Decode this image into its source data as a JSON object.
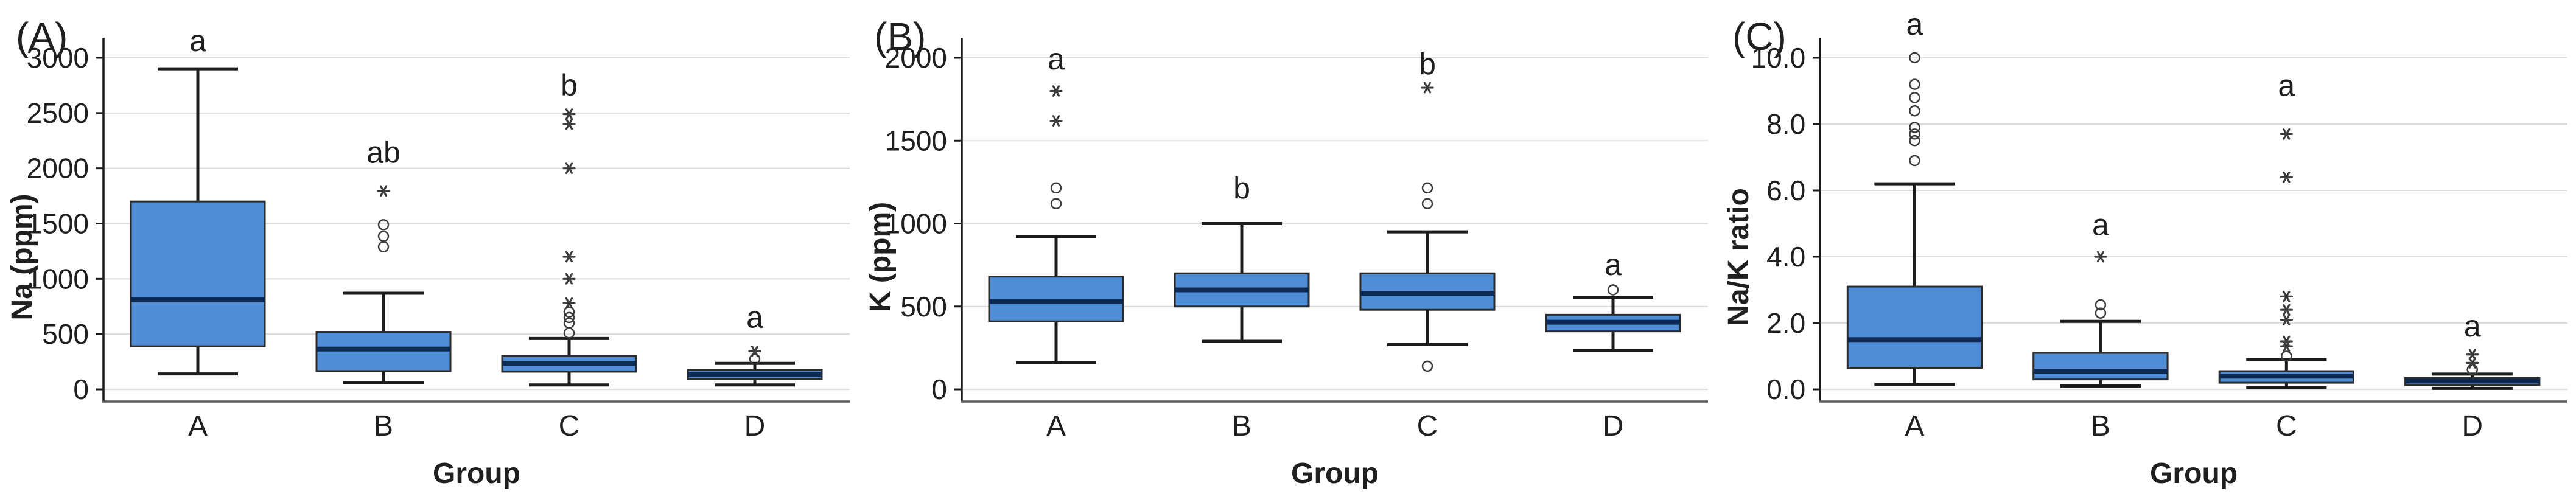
{
  "figure": {
    "background": "#ffffff"
  },
  "styles": {
    "box_fill": "#4f8dd6",
    "box_stroke": "#2b2b2b",
    "median_color": "#0f2a52",
    "whisker_color": "#1c1c1c",
    "grid_color": "#dcdcdc",
    "axis_color": "#1a1a1a",
    "frame_color": "#5a5a5a",
    "text_color": "#1f1f1f",
    "outlier_color": "#3c3c3c"
  },
  "chart_data": [
    {
      "type": "boxplot",
      "panel_label": "(A)",
      "ylabel": "Na (ppm)",
      "xlabel": "Group",
      "grid": true,
      "legend": "none",
      "ylim": [
        0,
        3000
      ],
      "yticks": [
        0,
        500,
        1000,
        1500,
        2000,
        2500,
        3000
      ],
      "ytick_labels": [
        "0",
        "500",
        "1000",
        "1500",
        "2000",
        "2500",
        "3000"
      ],
      "categories": [
        "A",
        "B",
        "C",
        "D"
      ],
      "groups": [
        {
          "name": "A",
          "whislo": 140,
          "q1": 390,
          "med": 810,
          "q3": 1700,
          "whishi": 2900,
          "outliers_circles": [],
          "outliers_stars": [],
          "sig": {
            "label": "a",
            "y": 3060
          }
        },
        {
          "name": "B",
          "whislo": 60,
          "q1": 165,
          "med": 365,
          "q3": 520,
          "whishi": 870,
          "outliers_circles": [
            1290,
            1385,
            1490
          ],
          "outliers_stars": [
            1795
          ],
          "sig": {
            "label": "ab",
            "y": 2050
          }
        },
        {
          "name": "C",
          "whislo": 40,
          "q1": 160,
          "med": 235,
          "q3": 300,
          "whishi": 460,
          "outliers_circles": [
            510,
            600,
            650,
            700
          ],
          "outliers_stars": [
            780,
            1000,
            1200,
            2000,
            2400,
            2490
          ],
          "sig": {
            "label": "b",
            "y": 2660
          }
        },
        {
          "name": "D",
          "whislo": 40,
          "q1": 95,
          "med": 135,
          "q3": 175,
          "whishi": 235,
          "outliers_circles": [
            275
          ],
          "outliers_stars": [
            345
          ],
          "sig": {
            "label": "a",
            "y": 560
          }
        }
      ]
    },
    {
      "type": "boxplot",
      "panel_label": "(B)",
      "ylabel": "K (ppm)",
      "xlabel": "Group",
      "grid": true,
      "legend": "none",
      "ylim": [
        0,
        2000
      ],
      "yticks": [
        0,
        500,
        1000,
        1500,
        2000
      ],
      "ytick_labels": [
        "0",
        "500",
        "1000",
        "1500",
        "2000"
      ],
      "categories": [
        "A",
        "B",
        "C",
        "D"
      ],
      "groups": [
        {
          "name": "A",
          "whislo": 160,
          "q1": 410,
          "med": 530,
          "q3": 680,
          "whishi": 920,
          "outliers_circles": [
            1120,
            1215
          ],
          "outliers_stars": [
            1620,
            1800
          ],
          "sig": {
            "label": "a",
            "y": 1930
          }
        },
        {
          "name": "B",
          "whislo": 290,
          "q1": 500,
          "med": 600,
          "q3": 700,
          "whishi": 1000,
          "outliers_circles": [],
          "outliers_stars": [],
          "sig": {
            "label": "b",
            "y": 1150
          }
        },
        {
          "name": "C",
          "whislo": 270,
          "q1": 480,
          "med": 580,
          "q3": 700,
          "whishi": 950,
          "outliers_circles": [
            140,
            1120,
            1215
          ],
          "outliers_stars": [
            1820
          ],
          "sig": {
            "label": "b",
            "y": 1900
          }
        },
        {
          "name": "D",
          "whislo": 235,
          "q1": 350,
          "med": 405,
          "q3": 450,
          "whishi": 555,
          "outliers_circles": [
            600
          ],
          "outliers_stars": [],
          "sig": {
            "label": "a",
            "y": 690
          }
        }
      ]
    },
    {
      "type": "boxplot",
      "panel_label": "(C)",
      "ylabel": "Na/K ratio",
      "xlabel": "Group",
      "grid": true,
      "legend": "none",
      "ylim": [
        0,
        10
      ],
      "yticks": [
        0,
        2,
        4,
        6,
        8,
        10
      ],
      "ytick_labels": [
        "0.0",
        "2.0",
        "4.0",
        "6.0",
        "8.0",
        "10.0"
      ],
      "categories": [
        "A",
        "B",
        "C",
        "D"
      ],
      "groups": [
        {
          "name": "A",
          "whislo": 0.15,
          "q1": 0.65,
          "med": 1.5,
          "q3": 3.1,
          "whishi": 6.2,
          "outliers_circles": [
            6.9,
            7.5,
            7.7,
            7.9,
            8.4,
            8.8,
            9.2,
            10.0
          ],
          "outliers_stars": [],
          "sig": {
            "label": "a",
            "y": 10.7
          }
        },
        {
          "name": "B",
          "whislo": 0.1,
          "q1": 0.3,
          "med": 0.55,
          "q3": 1.1,
          "whishi": 2.05,
          "outliers_circles": [
            2.3,
            2.55
          ],
          "outliers_stars": [
            4.0
          ],
          "sig": {
            "label": "a",
            "y": 4.65
          }
        },
        {
          "name": "C",
          "whislo": 0.05,
          "q1": 0.2,
          "med": 0.4,
          "q3": 0.55,
          "whishi": 0.9,
          "outliers_circles": [
            1.0
          ],
          "outliers_stars": [
            1.3,
            1.45,
            2.1,
            2.4,
            2.8,
            6.4,
            7.7
          ],
          "sig": {
            "label": "a",
            "y": 8.85
          }
        },
        {
          "name": "D",
          "whislo": 0.03,
          "q1": 0.13,
          "med": 0.25,
          "q3": 0.34,
          "whishi": 0.46,
          "outliers_circles": [
            0.6
          ],
          "outliers_stars": [
            0.8,
            1.05
          ],
          "sig": {
            "label": "a",
            "y": 1.6
          }
        }
      ]
    }
  ]
}
